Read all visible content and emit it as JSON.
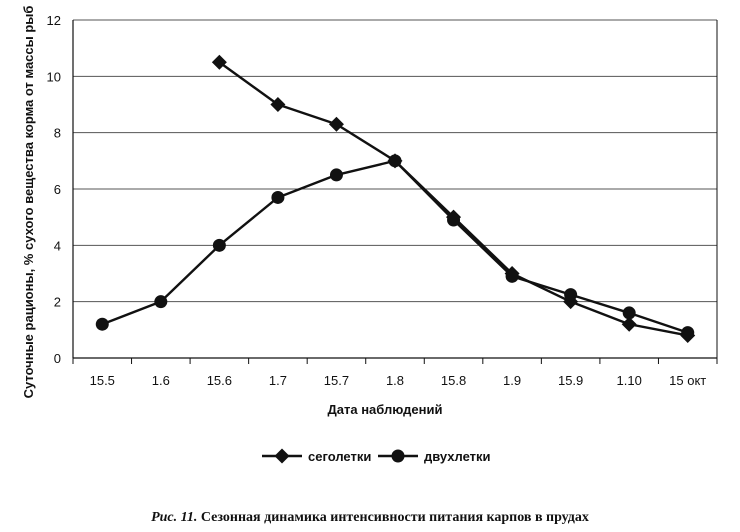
{
  "chart_data": {
    "type": "line",
    "categories": [
      "15.5",
      "1.6",
      "15.6",
      "1.7",
      "15.7",
      "1.8",
      "15.8",
      "1.9",
      "15.9",
      "1.10",
      "15 окт"
    ],
    "series": [
      {
        "name": "сеголетки",
        "marker": "diamond",
        "values": [
          null,
          null,
          10.5,
          9.0,
          8.3,
          7.0,
          5.0,
          3.0,
          2.0,
          1.2,
          0.8
        ]
      },
      {
        "name": "двухлетки",
        "marker": "circle",
        "values": [
          1.2,
          2.0,
          4.0,
          5.7,
          6.5,
          7.0,
          4.9,
          2.9,
          2.25,
          1.6,
          0.9
        ]
      }
    ],
    "ylim": [
      0,
      12
    ],
    "yticks": [
      0,
      2,
      4,
      6,
      8,
      10,
      12
    ],
    "ylabel": "Суточные рационы, % сухого вещества корма от массы рыб",
    "xlabel": "Дата наблюдений",
    "grid": true,
    "legend_position": "bottom"
  },
  "caption": {
    "figure_label": "Рис. 11.",
    "text": "Сезонная динамика интенсивности питания карпов в прудах"
  },
  "colors": {
    "line": "#111111",
    "grid": "#555555"
  }
}
